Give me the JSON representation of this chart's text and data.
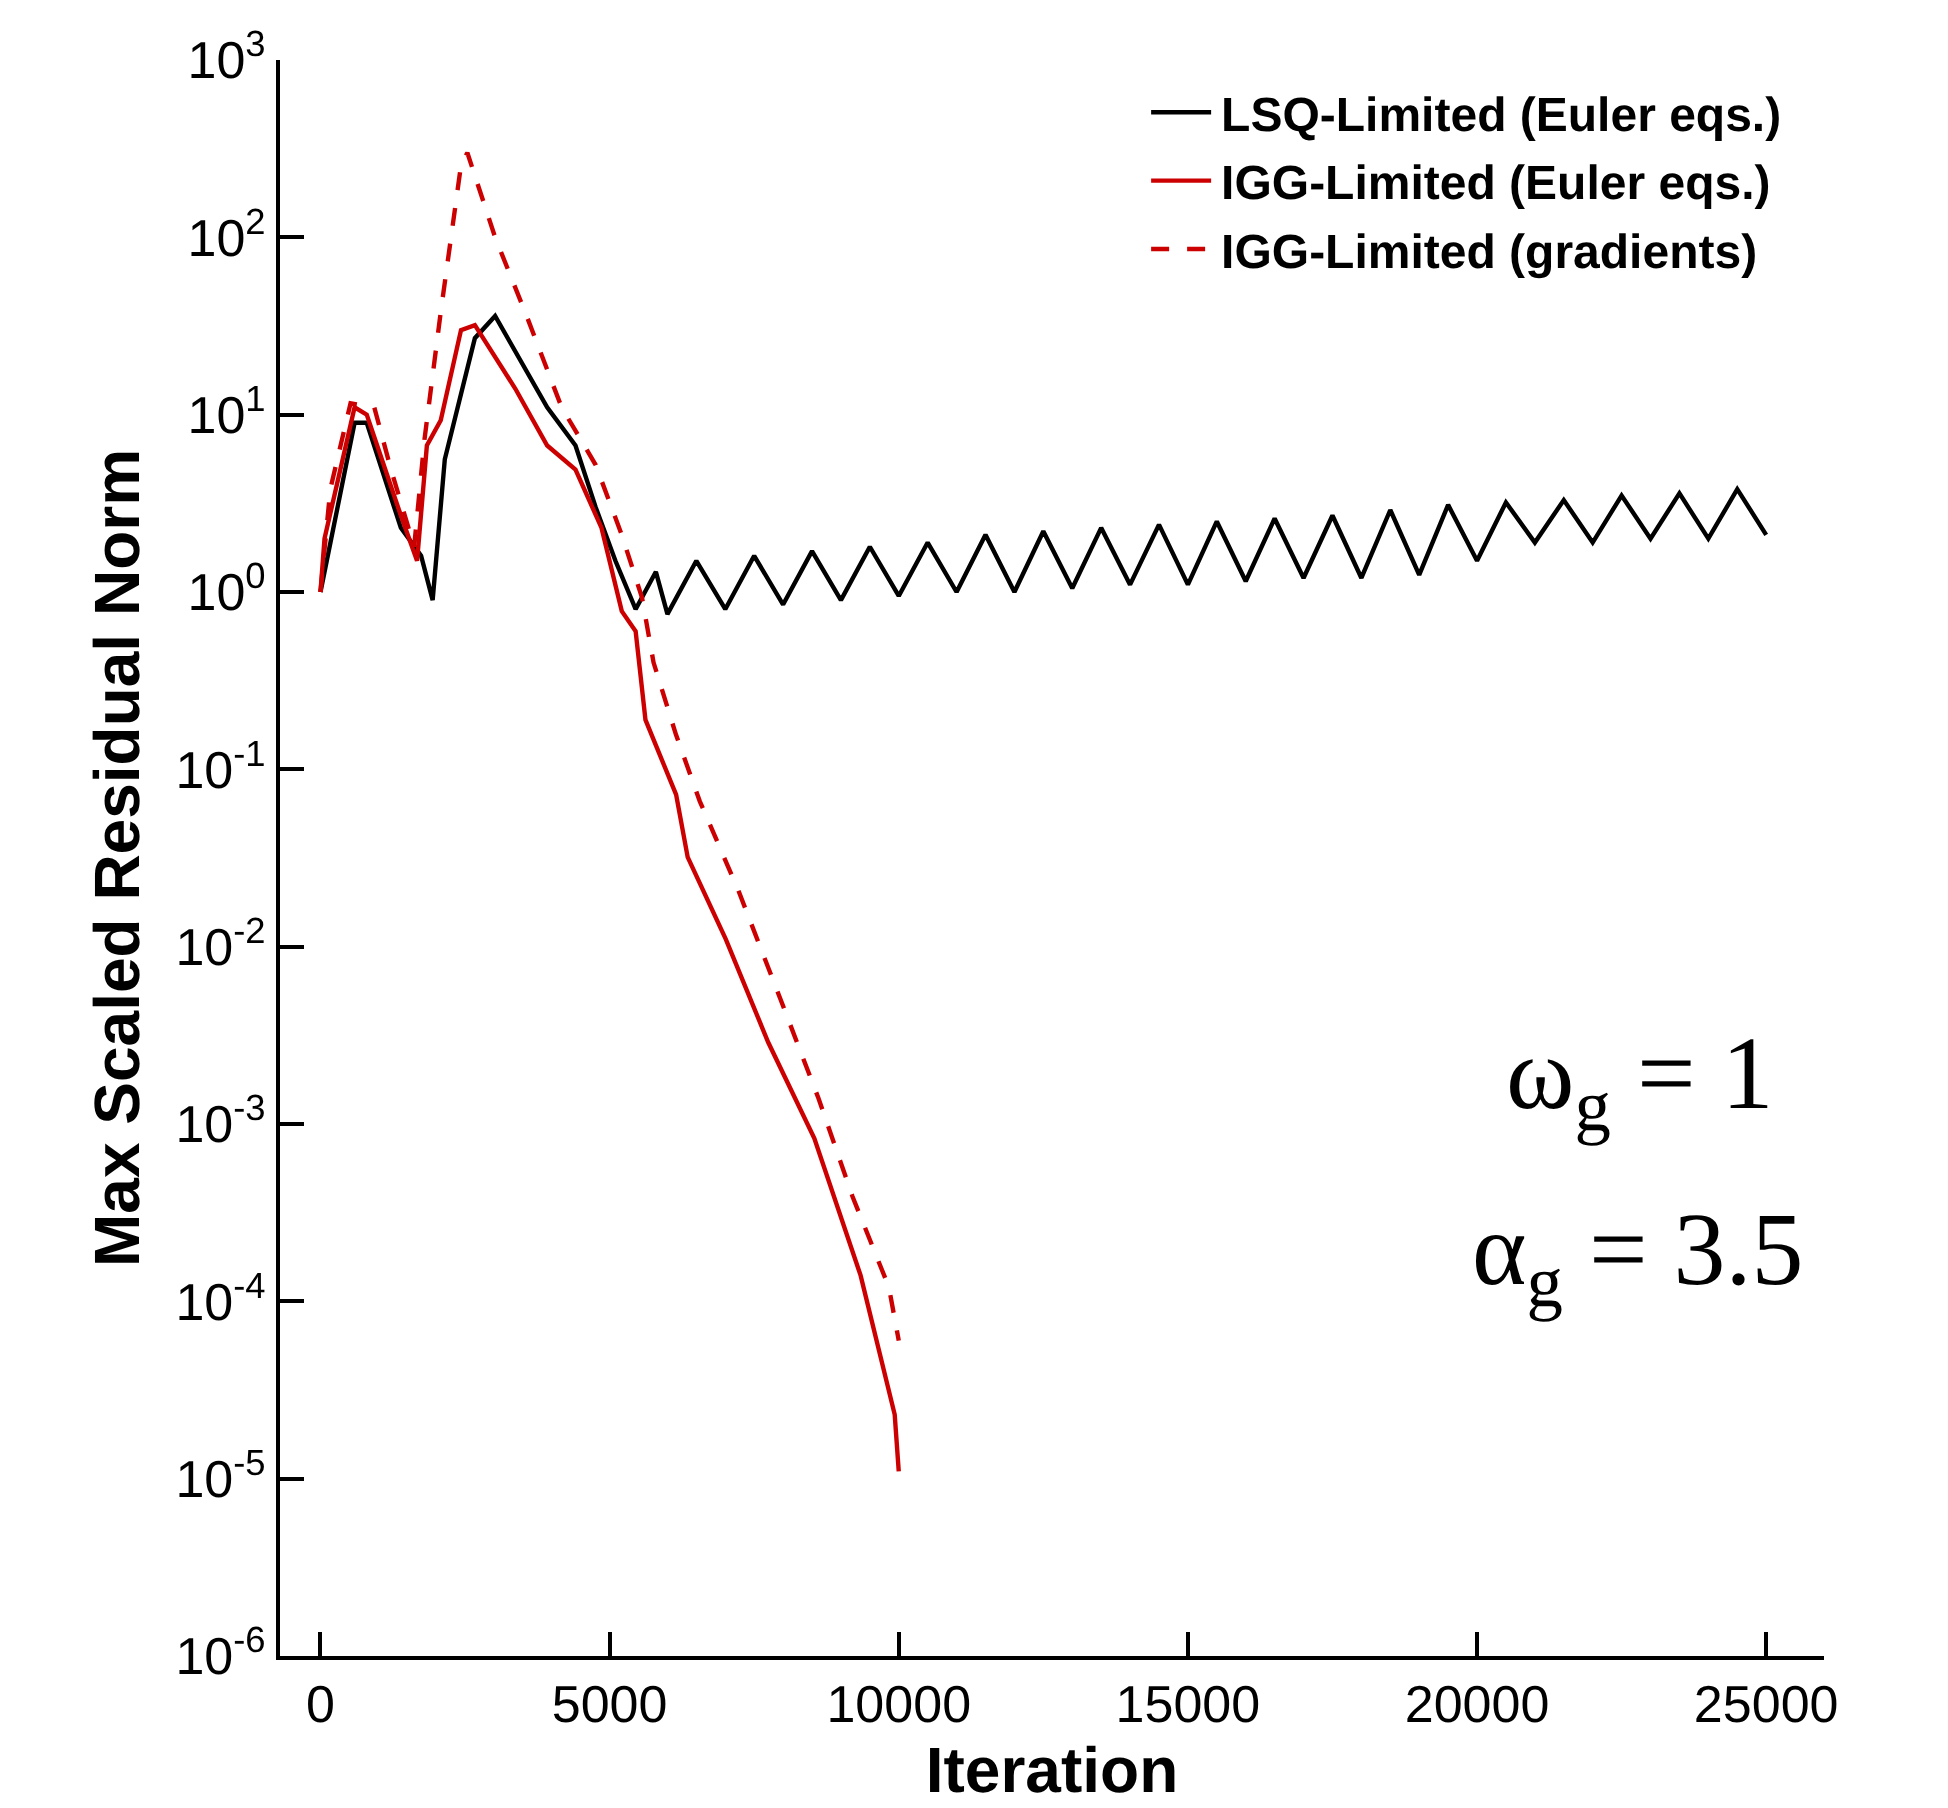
{
  "chart_data": {
    "type": "line",
    "xlabel": "Iteration",
    "ylabel": "Max Scaled Residual Norm",
    "log": "y",
    "grid": false,
    "legend": "top right",
    "marker": "none",
    "xlim": [
      -700,
      26000
    ],
    "xticks": [
      0,
      5000,
      10000,
      15000,
      20000,
      25000
    ],
    "ylim": [
      1e-06,
      1000
    ],
    "yticks": [
      {
        "value": 1e-06,
        "label": "10$^{-6}$"
      },
      {
        "value": 1e-05,
        "label": "10$^{-5}$"
      },
      {
        "value": 0.0001,
        "label": "10$^{-4}$"
      },
      {
        "value": 0.001,
        "label": "10$^{-3}$"
      },
      {
        "value": 0.01,
        "label": "10$^{-2}$"
      },
      {
        "value": 0.1,
        "label": "10$^{-1}$"
      },
      {
        "value": 1,
        "label": "10$^{0}$"
      },
      {
        "value": 10,
        "label": "10$^{1}$"
      },
      {
        "value": 100,
        "label": "10$^{2}$"
      },
      {
        "value": 1000,
        "label": "10$^{3}$"
      }
    ],
    "annotations": [
      "ω$_{g}$ = 1",
      "α$_{g}$ = 3.5"
    ],
    "series": [
      {
        "name": "LSQ-Limited (Euler eqs.)",
        "color": "#000000",
        "line_style": "solid",
        "x": [
          0,
          590,
          800,
          1390,
          1740,
          1940,
          2150,
          2670,
          3020,
          3920,
          4410,
          4760,
          5100,
          5450,
          5800,
          6000,
          6500,
          7000,
          7500,
          8000,
          8500,
          9000,
          9500,
          10000,
          10500,
          11000,
          11500,
          12000,
          12500,
          13000,
          13500,
          14000,
          14500,
          15000,
          15500,
          16000,
          16500,
          17000,
          17500,
          18000,
          18500,
          19000,
          19500,
          20000,
          20500,
          21000,
          21500,
          22000,
          22500,
          23000,
          23500,
          24000,
          24500,
          25000
        ],
        "values": [
          1,
          9,
          9,
          2.3,
          1.6,
          0.9,
          5.6,
          27,
          36,
          11,
          6.7,
          3,
          1.5,
          0.8,
          1.3,
          0.75,
          1.5,
          0.8,
          1.6,
          0.85,
          1.7,
          0.9,
          1.8,
          0.95,
          1.9,
          1.0,
          2.1,
          1.0,
          2.2,
          1.05,
          2.3,
          1.1,
          2.4,
          1.1,
          2.5,
          1.15,
          2.6,
          1.2,
          2.7,
          1.2,
          2.9,
          1.25,
          3.1,
          1.5,
          3.2,
          1.9,
          3.3,
          1.9,
          3.5,
          2.0,
          3.6,
          2.0,
          3.8,
          2.1
        ]
      },
      {
        "name": "IGG-Limited (Euler eqs.)",
        "color": "#cc0000",
        "line_style": "solid",
        "x": [
          0,
          70,
          590,
          800,
          1390,
          1670,
          1840,
          2080,
          2430,
          2670,
          3370,
          3920,
          4410,
          4860,
          5210,
          5450,
          5620,
          6150,
          6350,
          7010,
          7740,
          8540,
          9340,
          9930,
          10000
        ],
        "values": [
          1,
          2,
          11,
          10,
          2.7,
          1.5,
          6.7,
          9.3,
          30,
          32,
          14,
          6.7,
          4.9,
          2.3,
          0.78,
          0.6,
          0.19,
          0.072,
          0.032,
          0.011,
          0.0029,
          0.00083,
          0.00014,
          2.3e-05,
          1.1e-05
        ]
      },
      {
        "name": "IGG-Limited (gradients)",
        "color": "#cc0000",
        "line_style": "dashed",
        "x": [
          0,
          170,
          520,
          930,
          1220,
          1620,
          1800,
          2080,
          2430,
          2540,
          3020,
          3580,
          4170,
          4760,
          5210,
          5560,
          5760,
          6150,
          6560,
          7220,
          7950,
          8610,
          9200,
          9830,
          10000
        ],
        "values": [
          1,
          3.8,
          11.6,
          11,
          4.9,
          1.8,
          7.3,
          38,
          255,
          300,
          100,
          35,
          11,
          5.2,
          2.1,
          0.93,
          0.4,
          0.156,
          0.066,
          0.021,
          0.0051,
          0.0014,
          0.00039,
          0.00012,
          6e-05
        ]
      }
    ]
  }
}
